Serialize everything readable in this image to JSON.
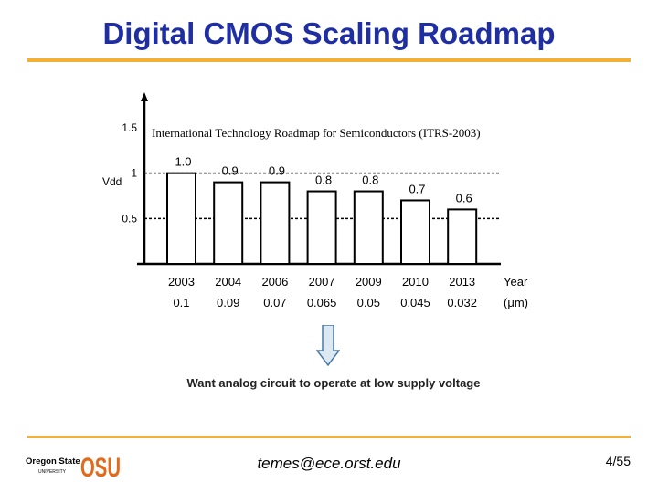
{
  "slide": {
    "title": "Digital CMOS Scaling Roadmap",
    "email": "temes@ece.orst.edu",
    "page": "4/55",
    "caption": "Want analog circuit to operate at low supply voltage",
    "logo": {
      "text_top": "Oregon State",
      "text_bottom": "UNIVERSITY",
      "mark": "OSU",
      "color": "#e26a1b"
    }
  },
  "colors": {
    "title": "#1f2fa3",
    "rule": "#f2b134",
    "bar_fill": "#ffffff",
    "bar_stroke": "#000000",
    "arrow_fill": "#dce8f2",
    "arrow_stroke": "#4a7aa8"
  },
  "chart_data": {
    "type": "bar",
    "title": "International Technology Roadmap for Semiconductors (ITRS-2003)",
    "ylabel": "Vdd",
    "xlabel": "Year",
    "secondary_xlabel": "(μm)",
    "ylim": [
      0,
      1.5
    ],
    "yticks": [
      "1.5",
      "1",
      "0.5"
    ],
    "reference_lines": [
      1,
      0.5
    ],
    "categories": [
      "2003",
      "2004",
      "2006",
      "2007",
      "2009",
      "2010",
      "2013"
    ],
    "feature_size": [
      "0.1",
      "0.09",
      "0.07",
      "0.065",
      "0.05",
      "0.045",
      "0.032"
    ],
    "values": [
      1.0,
      0.9,
      0.9,
      0.8,
      0.8,
      0.7,
      0.6
    ],
    "value_labels": [
      "1.0",
      "0.9",
      "0.9",
      "0.8",
      "0.8",
      "0.7",
      "0.6"
    ]
  }
}
